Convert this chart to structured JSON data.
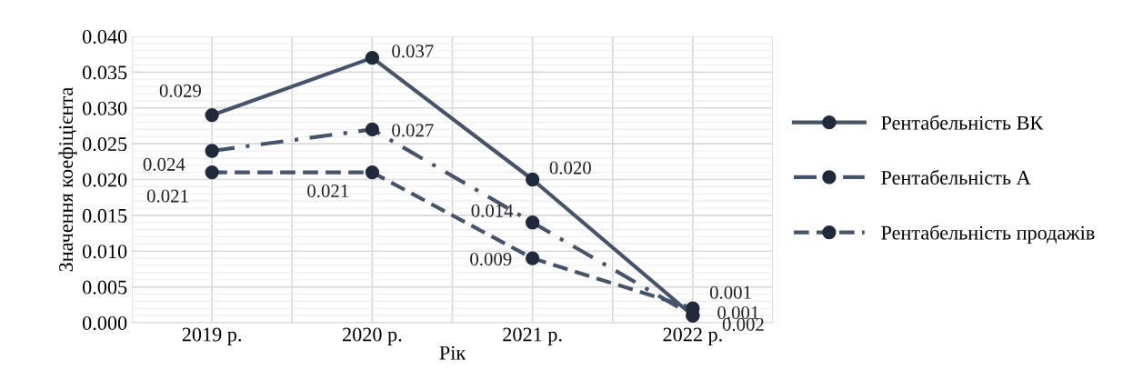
{
  "chart_data": {
    "type": "line",
    "xlabel": "Рік",
    "ylabel": "Значення коефіцієнта",
    "categories": [
      "2019 р.",
      "2020 р.",
      "2021 р.",
      "2022 р."
    ],
    "series": [
      {
        "name": "Рентабельність ВК",
        "color": "#44546a",
        "line_style": "solid",
        "values": [
          0.029,
          0.037,
          0.02,
          0.001
        ],
        "value_labels": [
          "0.029",
          "0.037",
          "0.020",
          "0.001"
        ]
      },
      {
        "name": "Рентабельність А",
        "color": "#44546a",
        "line_style": "dashdot",
        "values": [
          0.024,
          0.027,
          0.014,
          0.001
        ],
        "value_labels": [
          "0.024",
          "0.027",
          "0.014",
          "0.001"
        ]
      },
      {
        "name": "Рентабельність продажів",
        "color": "#44546a",
        "line_style": "dashed",
        "values": [
          0.021,
          0.021,
          0.009,
          0.002
        ],
        "value_labels": [
          "0.021",
          "0.021",
          "0.009",
          "0.002"
        ]
      }
    ],
    "ylim": [
      0,
      0.04
    ],
    "yticks": [
      {
        "value": 0,
        "label": "0.000"
      },
      {
        "value": 0.005,
        "label": "0.005"
      },
      {
        "value": 0.01,
        "label": "0.010"
      },
      {
        "value": 0.015,
        "label": "0.015"
      },
      {
        "value": 0.02,
        "label": "0.020"
      },
      {
        "value": 0.025,
        "label": "0.025"
      },
      {
        "value": 0.03,
        "label": "0.030"
      },
      {
        "value": 0.035,
        "label": "0.035"
      },
      {
        "value": 0.04,
        "label": "0.040"
      }
    ],
    "grid": true,
    "legend": "right",
    "marker": "circle"
  }
}
